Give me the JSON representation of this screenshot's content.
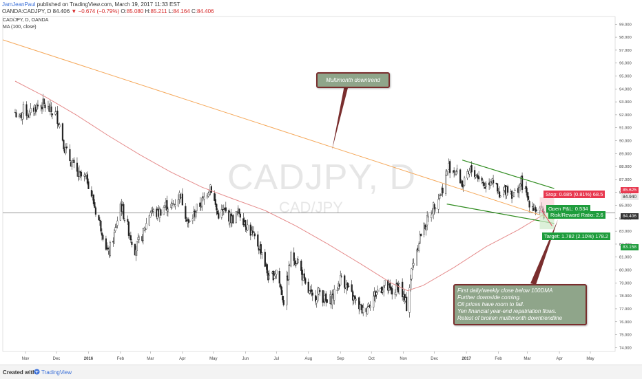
{
  "header": {
    "author": "JamJeanPaul",
    "published": "published on TradingView.com, March 19, 2017 11:33 EST",
    "symbol_line": "OANDA:CADJPY, D",
    "last": "84.406",
    "change": "−0.674 (−0.79%)",
    "o_label": "O:",
    "o_value": "85.080",
    "h_label": "H:",
    "h_value": "85.211",
    "l_label": "L:",
    "l_value": "84.164",
    "c_label": "C:",
    "c_value": "84.406"
  },
  "legend": {
    "title": "CAD/JPY, D, OANDA",
    "ma": "MA (100, close)"
  },
  "watermark": {
    "symbol": "CADJPY, D",
    "pair": "CAD/JPY"
  },
  "annotations": {
    "multimonth": "Multimonth downtrend",
    "notes": [
      "First daily/weekly close below 100DMA",
      "Further downside coming.",
      "Oil prices have room to fall.",
      "Yen financial year-end repatriation flows.",
      "Retest of broken multimonth downtrendline"
    ],
    "stop": "Stop: 0.685 (0.81%) 68.5",
    "open_pnl": "Open P&L: 0.534",
    "risk_reward": "Risk/Reward Ratio: 2.6",
    "target": "Target: 1.782 (2.10%) 178.2"
  },
  "price_tags": {
    "stop": "85.625",
    "current_high": "84.940",
    "last": "84.406",
    "target": "83.158"
  },
  "colors": {
    "up": "#2a2a2a",
    "down": "#2a2a2a",
    "ma": "#e58b8b",
    "trendline": "#f5a85a",
    "channel": "#2e8b1e",
    "stop": "#e8384f",
    "target": "#1e9c3c"
  },
  "footer": {
    "created": "Created with",
    "brand": "TradingView"
  },
  "chart_data": {
    "type": "candlestick",
    "y_ticks": [
      "99.000",
      "98.000",
      "97.000",
      "96.000",
      "95.000",
      "94.000",
      "93.000",
      "92.000",
      "91.000",
      "90.000",
      "89.000",
      "88.000",
      "87.000",
      "86.000",
      "85.000",
      "84.000",
      "83.000",
      "82.000",
      "81.000",
      "80.000",
      "79.000",
      "78.000",
      "77.000",
      "76.000",
      "75.000",
      "74.000"
    ],
    "ylim": [
      73.7,
      99.6
    ],
    "x_ticks": [
      "Nov",
      "Dec",
      "2016",
      "Feb",
      "Mar",
      "Apr",
      "May",
      "Jun",
      "Jul",
      "Aug",
      "Sep",
      "Oct",
      "Nov",
      "Dec",
      "2017",
      "Feb",
      "Mar",
      "Apr",
      "May"
    ],
    "close_path": [
      [
        "2015-10-22",
        92.2
      ],
      [
        "2015-10-26",
        91.6
      ],
      [
        "2015-10-30",
        92.4
      ],
      [
        "2015-11-05",
        92.0
      ],
      [
        "2015-11-10",
        92.6
      ],
      [
        "2015-11-18",
        92.8
      ],
      [
        "2015-11-25",
        92.3
      ],
      [
        "2015-12-01",
        92.0
      ],
      [
        "2015-12-05",
        91.0
      ],
      [
        "2015-12-09",
        89.4
      ],
      [
        "2015-12-15",
        88.4
      ],
      [
        "2015-12-22",
        87.3
      ],
      [
        "2015-12-31",
        87.0
      ],
      [
        "2016-01-08",
        84.6
      ],
      [
        "2016-01-14",
        83.1
      ],
      [
        "2016-01-20",
        81.2
      ],
      [
        "2016-01-26",
        82.7
      ],
      [
        "2016-02-01",
        85.1
      ],
      [
        "2016-02-08",
        83.3
      ],
      [
        "2016-02-15",
        81.6
      ],
      [
        "2016-02-23",
        82.8
      ],
      [
        "2016-03-01",
        84.6
      ],
      [
        "2016-03-08",
        84.3
      ],
      [
        "2016-03-15",
        85.0
      ],
      [
        "2016-03-22",
        84.9
      ],
      [
        "2016-03-30",
        85.9
      ],
      [
        "2016-04-07",
        83.5
      ],
      [
        "2016-04-14",
        84.6
      ],
      [
        "2016-04-21",
        85.4
      ],
      [
        "2016-04-28",
        86.6
      ],
      [
        "2016-05-05",
        84.3
      ],
      [
        "2016-05-12",
        84.5
      ],
      [
        "2016-05-19",
        83.9
      ],
      [
        "2016-05-26",
        84.5
      ],
      [
        "2016-06-02",
        83.5
      ],
      [
        "2016-06-10",
        82.4
      ],
      [
        "2016-06-17",
        81.4
      ],
      [
        "2016-06-24",
        79.2
      ],
      [
        "2016-07-01",
        80.0
      ],
      [
        "2016-07-08",
        77.6
      ],
      [
        "2016-07-15",
        81.0
      ],
      [
        "2016-07-22",
        80.7
      ],
      [
        "2016-07-29",
        78.7
      ],
      [
        "2016-08-05",
        77.8
      ],
      [
        "2016-08-12",
        78.3
      ],
      [
        "2016-08-19",
        77.4
      ],
      [
        "2016-08-26",
        78.1
      ],
      [
        "2016-09-02",
        79.5
      ],
      [
        "2016-09-09",
        78.4
      ],
      [
        "2016-09-16",
        77.5
      ],
      [
        "2016-09-23",
        76.8
      ],
      [
        "2016-09-30",
        77.6
      ],
      [
        "2016-10-07",
        78.4
      ],
      [
        "2016-10-14",
        78.8
      ],
      [
        "2016-10-21",
        78.2
      ],
      [
        "2016-10-28",
        78.8
      ],
      [
        "2016-11-04",
        77.2
      ],
      [
        "2016-11-10",
        80.4
      ],
      [
        "2016-11-17",
        82.6
      ],
      [
        "2016-11-24",
        83.8
      ],
      [
        "2016-12-01",
        85.1
      ],
      [
        "2016-12-08",
        86.1
      ],
      [
        "2016-12-15",
        88.0
      ],
      [
        "2016-12-22",
        87.6
      ],
      [
        "2016-12-29",
        86.5
      ],
      [
        "2017-01-05",
        87.7
      ],
      [
        "2017-01-12",
        87.3
      ],
      [
        "2017-01-19",
        86.5
      ],
      [
        "2017-01-26",
        87.2
      ],
      [
        "2017-02-02",
        85.5
      ],
      [
        "2017-02-09",
        86.4
      ],
      [
        "2017-02-16",
        85.8
      ],
      [
        "2017-02-23",
        86.8
      ],
      [
        "2017-03-02",
        85.4
      ],
      [
        "2017-03-09",
        84.7
      ],
      [
        "2017-03-17",
        84.4
      ]
    ],
    "ma_path": [
      [
        "2015-10-22",
        94.6
      ],
      [
        "2015-11-20",
        93.4
      ],
      [
        "2015-12-20",
        92.0
      ],
      [
        "2016-01-20",
        90.4
      ],
      [
        "2016-02-20",
        88.9
      ],
      [
        "2016-03-20",
        87.6
      ],
      [
        "2016-04-20",
        86.4
      ],
      [
        "2016-05-20",
        85.5
      ],
      [
        "2016-06-20",
        84.6
      ],
      [
        "2016-07-20",
        83.4
      ],
      [
        "2016-08-20",
        82.0
      ],
      [
        "2016-09-20",
        80.5
      ],
      [
        "2016-10-20",
        79.0
      ],
      [
        "2016-11-05",
        78.4
      ],
      [
        "2016-11-20",
        78.8
      ],
      [
        "2016-12-20",
        80.2
      ],
      [
        "2017-01-20",
        81.8
      ],
      [
        "2017-02-20",
        83.1
      ],
      [
        "2017-03-17",
        84.3
      ]
    ],
    "trendline": [
      [
        "2015-10-10",
        97.8
      ],
      [
        "2017-03-27",
        83.9
      ]
    ],
    "channel_upper": [
      [
        "2016-12-28",
        88.5
      ],
      [
        "2017-03-27",
        86.3
      ]
    ],
    "channel_lower": [
      [
        "2016-12-13",
        85.1
      ],
      [
        "2017-03-27",
        83.6
      ]
    ]
  }
}
